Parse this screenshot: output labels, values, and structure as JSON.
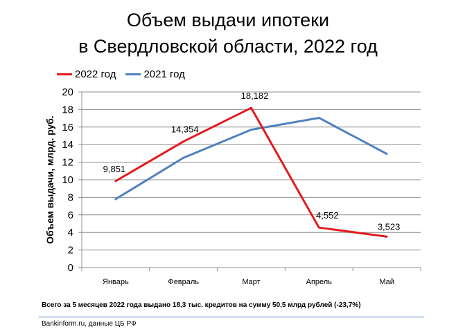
{
  "title_line1": "Объем выдачи ипотеки",
  "title_line2": "в Свердловской  области, 2022 год",
  "chart_data": {
    "type": "line",
    "categories": [
      "Январь",
      "Февраль",
      "Март",
      "Апрель",
      "Май"
    ],
    "ylabel": "Объем выдачи, млрд. руб.",
    "xlabel": "",
    "ylim": [
      0,
      20
    ],
    "yticks": [
      "0",
      "2",
      "4",
      "6",
      "8",
      "10",
      "12",
      "14",
      "16",
      "18",
      "20"
    ],
    "grid": true,
    "legend_position": "top-left",
    "series": [
      {
        "name": "2022 год",
        "color": "#e31a1c",
        "values": [
          9.851,
          14.354,
          18.182,
          4.552,
          3.523
        ],
        "labels": [
          "9,851",
          "14,354",
          "18,182",
          "4,552",
          "3,523"
        ]
      },
      {
        "name": "2021 год",
        "color": "#4f81bd",
        "values": [
          7.8,
          12.5,
          15.7,
          17.05,
          12.95
        ],
        "labels": []
      }
    ]
  },
  "footnote_summary": "Всего за  5 месяцев  2022 года  выдано 18,3 тыс. кредитов на сумму  50,5 млрд рублей  (-23,7%)",
  "footnote_source": "Bankinform.ru,  данные ЦБ РФ"
}
